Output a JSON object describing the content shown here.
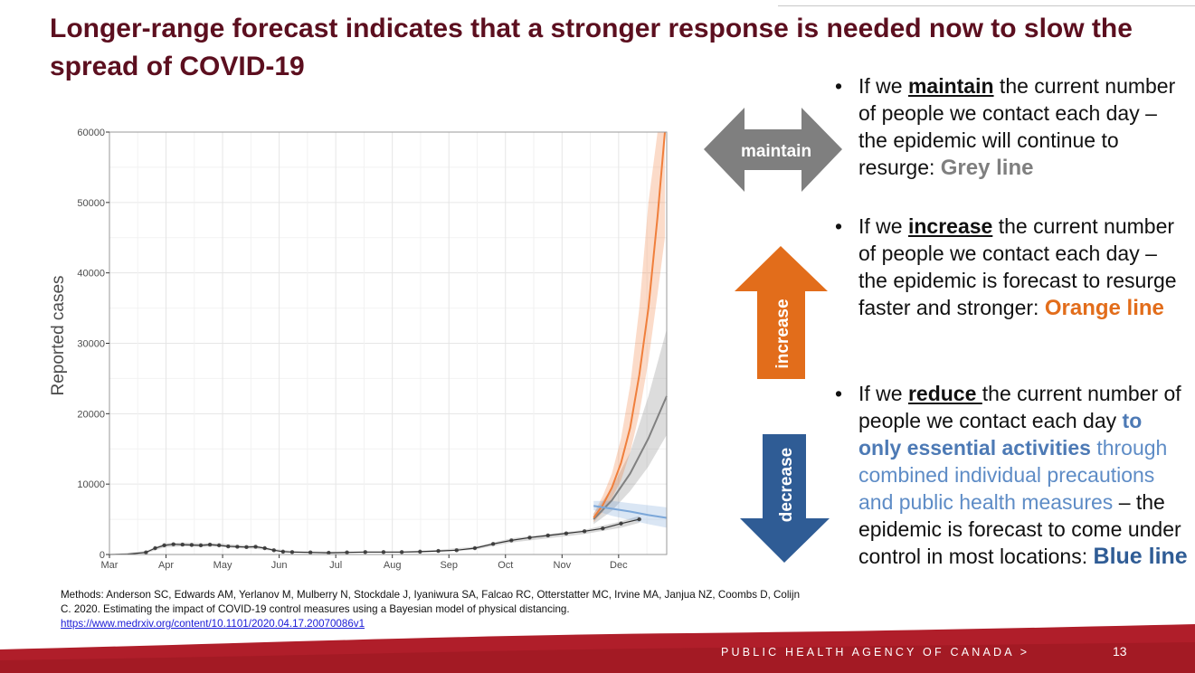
{
  "slide": {
    "title": "Longer-range forecast indicates that a stronger response is needed now to slow the spread of COVID-19",
    "page_number": "13",
    "footer": "PUBLIC HEALTH AGENCY OF CANADA  >"
  },
  "colors": {
    "title": "#5c0f1f",
    "maintain": "#7f7f7f",
    "increase": "#e26d1b",
    "decrease": "#2f5c95",
    "footer_red": "#b01e2a"
  },
  "arrows": {
    "maintain": "maintain",
    "increase": "increase",
    "decrease": "decrease"
  },
  "bullets": {
    "maintain": {
      "prefix": "If we ",
      "keyword": "maintain",
      "body": " the current number of people we contact each day – the epidemic will continue to resurge: ",
      "label": "Grey line"
    },
    "increase": {
      "prefix": "If we ",
      "keyword": "increase",
      "body": " the current number of people we contact each day – the epidemic is forecast to resurge faster and stronger: ",
      "label": "Orange line"
    },
    "reduce": {
      "prefix": "If we ",
      "keyword": "reduce ",
      "body1": "the current number of people we contact each day ",
      "emph": "to only essential activities",
      "body2": " through combined individual precautions and public health measures ",
      "body3": " – the epidemic is forecast to come under control in most locations: ",
      "label": "Blue line"
    }
  },
  "citation": {
    "text": "Methods: Anderson SC, Edwards AM, Yerlanov M, Mulberry N, Stockdale J, Iyaniwura SA, Falcao RC, Otterstatter MC, Irvine MA, Janjua NZ, Coombs D, Colijn C. 2020. Estimating the impact of COVID-19 control measures using a Bayesian model of physical distancing.",
    "link": "https://www.medrxiv.org/content/10.1101/2020.04.17.20070086v1"
  },
  "chart_data": {
    "type": "line",
    "title": "",
    "xlabel": "",
    "ylabel": "Reported cases",
    "x_months": [
      "Mar",
      "Apr",
      "May",
      "Jun",
      "Jul",
      "Aug",
      "Sep",
      "Oct",
      "Nov",
      "Dec"
    ],
    "xlim_days": [
      0,
      305
    ],
    "ylim": [
      0,
      60000
    ],
    "y_ticks": [
      0,
      10000,
      20000,
      30000,
      40000,
      50000,
      60000
    ],
    "grid": true,
    "observed": {
      "name": "Reported cases",
      "days": [
        0,
        10,
        20,
        25,
        30,
        35,
        40,
        45,
        50,
        55,
        60,
        65,
        70,
        75,
        80,
        85,
        90,
        95,
        100,
        110,
        120,
        130,
        140,
        150,
        160,
        170,
        180,
        190,
        200,
        210,
        220,
        230,
        240,
        250,
        260,
        270,
        280,
        290
      ],
      "values": [
        0,
        50,
        300,
        900,
        1300,
        1450,
        1400,
        1350,
        1300,
        1400,
        1300,
        1150,
        1100,
        1050,
        1100,
        900,
        600,
        400,
        350,
        300,
        250,
        300,
        350,
        350,
        350,
        400,
        500,
        600,
        900,
        1500,
        2000,
        2400,
        2700,
        3000,
        3300,
        3700,
        4400,
        5000
      ]
    },
    "fitted_band": {
      "days": [
        0,
        20,
        30,
        40,
        50,
        60,
        70,
        80,
        90,
        100,
        120,
        140,
        160,
        180,
        200,
        220,
        240,
        260,
        280,
        290
      ],
      "lower": [
        0,
        150,
        1000,
        1150,
        1050,
        1100,
        900,
        800,
        500,
        250,
        200,
        250,
        250,
        350,
        700,
        1700,
        2300,
        2900,
        3800,
        4500
      ],
      "upper": [
        0,
        500,
        1600,
        1700,
        1600,
        1600,
        1350,
        1300,
        800,
        500,
        400,
        450,
        450,
        650,
        1100,
        2300,
        2900,
        3500,
        4700,
        5500
      ]
    },
    "series": [
      {
        "name": "Maintain (grey line)",
        "color": "#808080",
        "days": [
          265,
          275,
          285,
          295,
          305
        ],
        "values": [
          5000,
          7700,
          11500,
          16500,
          22500
        ],
        "lower": [
          4300,
          6200,
          9000,
          12500,
          17000
        ],
        "upper": [
          5800,
          9500,
          14500,
          22500,
          32000
        ]
      },
      {
        "name": "Increase (orange line)",
        "color": "#f07f3c",
        "days": [
          265,
          270,
          275,
          280,
          285,
          290,
          295,
          300,
          304
        ],
        "values": [
          5200,
          7000,
          9500,
          13000,
          18000,
          25500,
          35000,
          48000,
          60000
        ],
        "lower": [
          4600,
          6000,
          8000,
          10500,
          14500,
          20000,
          27500,
          37000,
          45000
        ],
        "upper": [
          5800,
          8300,
          11500,
          16500,
          24000,
          35000,
          50000,
          60000,
          60000
        ]
      },
      {
        "name": "Decrease (blue line)",
        "color": "#7ba7d9",
        "days": [
          265,
          275,
          285,
          295,
          305
        ],
        "values": [
          6900,
          6500,
          6100,
          5600,
          5200
        ],
        "lower": [
          6300,
          5500,
          4900,
          4300,
          3800
        ],
        "upper": [
          7600,
          7600,
          7300,
          7000,
          6700
        ]
      }
    ]
  }
}
